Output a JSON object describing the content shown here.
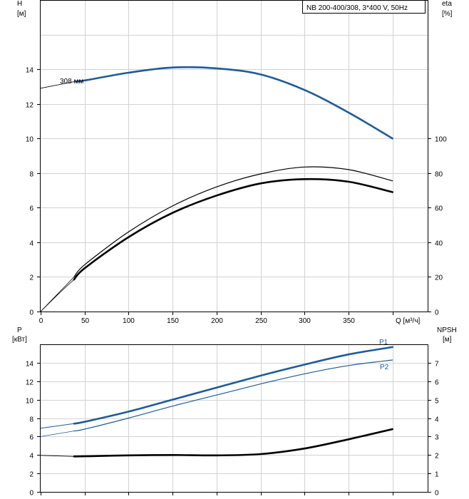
{
  "chart_data": [
    {
      "type": "line",
      "legend_text": "NB 200-400/308, 3*400 V, 50Hz",
      "x_label": "Q [м³/ч]",
      "x_ticks": [
        0,
        50,
        100,
        150,
        200,
        250,
        300,
        350,
        400
      ],
      "x_tick_labels": [
        "0",
        "50",
        "100",
        "150",
        "200",
        "250",
        "300",
        "350",
        ""
      ],
      "xlim": [
        0,
        440
      ],
      "left_axis": {
        "label_top": "H",
        "label_unit": "[м]",
        "ylim": [
          0,
          18
        ],
        "ticks": [
          0,
          2,
          4,
          6,
          8,
          10,
          12,
          14
        ],
        "tick_labels": [
          "0",
          "2",
          "4",
          "6",
          "8",
          "10",
          "12",
          "14"
        ]
      },
      "right_axis": {
        "label_top": "eta",
        "label_unit": "[%]",
        "ylim": [
          0,
          180
        ],
        "ticks": [
          0,
          20,
          40,
          60,
          80,
          100
        ],
        "tick_labels": [
          "0",
          "20",
          "40",
          "60",
          "80",
          "100"
        ]
      },
      "series": [
        {
          "id": "head_ext",
          "axis": "left",
          "color": "#000000",
          "width": 0.8,
          "x": [
            0,
            40
          ],
          "y": [
            12.9,
            13.3
          ]
        },
        {
          "id": "head",
          "name": "308 мм",
          "axis": "left",
          "color": "#1f5b99",
          "width": 2.6,
          "x": [
            40,
            50,
            100,
            150,
            200,
            250,
            300,
            350,
            400
          ],
          "y": [
            13.3,
            13.35,
            13.8,
            14.1,
            14.05,
            13.7,
            12.8,
            11.5,
            10.0
          ]
        },
        {
          "id": "eta_ext1",
          "axis": "right",
          "color": "#000000",
          "width": 0.8,
          "x": [
            0,
            20,
            38
          ],
          "y": [
            0,
            10,
            18.5
          ]
        },
        {
          "id": "eta_ext2",
          "axis": "right",
          "color": "#000000",
          "width": 0.8,
          "x": [
            0,
            20,
            38
          ],
          "y": [
            0,
            10.5,
            20
          ]
        },
        {
          "id": "eta_pump",
          "axis": "right",
          "color": "#000000",
          "width": 2.6,
          "x": [
            38,
            50,
            100,
            150,
            200,
            250,
            300,
            350,
            400
          ],
          "y": [
            18.5,
            25,
            43,
            57,
            67,
            74,
            76.5,
            75,
            69
          ]
        },
        {
          "id": "eta_total",
          "axis": "right",
          "color": "#000000",
          "width": 1.2,
          "x": [
            38,
            50,
            100,
            150,
            200,
            250,
            300,
            350,
            400
          ],
          "y": [
            20,
            27,
            46,
            61,
            72,
            79.5,
            83.5,
            82,
            75.5
          ]
        }
      ]
    },
    {
      "type": "line",
      "x_ticks": [
        0,
        50,
        100,
        150,
        200,
        250,
        300,
        350,
        400
      ],
      "xlim": [
        0,
        440
      ],
      "left_axis": {
        "label_top": "P",
        "label_unit": "[кВт]",
        "ylim": [
          0,
          16
        ],
        "ticks": [
          0,
          2,
          4,
          6,
          8,
          10,
          12,
          14
        ],
        "tick_labels": [
          "0",
          "2",
          "4",
          "6",
          "8",
          "10",
          "12",
          "14"
        ]
      },
      "right_axis": {
        "label_top": "NPSH",
        "label_unit": "[м]",
        "ylim": [
          0,
          8
        ],
        "ticks": [
          0,
          1,
          2,
          3,
          4,
          5,
          6,
          7
        ],
        "tick_labels": [
          "0",
          "1",
          "2",
          "3",
          "4",
          "5",
          "6",
          "7"
        ]
      },
      "series": [
        {
          "id": "p1_ext",
          "axis": "left",
          "color": "#1f5b99",
          "width": 1,
          "x": [
            0,
            38
          ],
          "y": [
            6.9,
            7.4
          ]
        },
        {
          "id": "p1",
          "name": "P1",
          "axis": "left",
          "color": "#1f5b99",
          "width": 2.6,
          "x": [
            38,
            50,
            100,
            150,
            200,
            250,
            300,
            350,
            400
          ],
          "y": [
            7.4,
            7.6,
            8.7,
            10.0,
            11.3,
            12.6,
            13.8,
            14.9,
            15.7
          ]
        },
        {
          "id": "p2_ext",
          "axis": "left",
          "color": "#1f5b99",
          "width": 0.8,
          "x": [
            0,
            38
          ],
          "y": [
            6.0,
            6.6
          ]
        },
        {
          "id": "p2",
          "name": "P2",
          "axis": "left",
          "color": "#1f5b99",
          "width": 1.2,
          "x": [
            38,
            50,
            100,
            150,
            200,
            250,
            300,
            350,
            400
          ],
          "y": [
            6.6,
            6.8,
            8.0,
            9.3,
            10.5,
            11.7,
            12.8,
            13.7,
            14.3
          ]
        },
        {
          "id": "npsh_ext",
          "axis": "right",
          "color": "#000000",
          "width": 0.8,
          "x": [
            0,
            38
          ],
          "y": [
            1.98,
            1.92
          ]
        },
        {
          "id": "npsh",
          "axis": "right",
          "color": "#000000",
          "width": 2.6,
          "x": [
            38,
            50,
            100,
            150,
            200,
            250,
            300,
            350,
            400
          ],
          "y": [
            1.92,
            1.93,
            1.98,
            2.0,
            1.98,
            2.05,
            2.35,
            2.85,
            3.4
          ]
        }
      ]
    }
  ]
}
